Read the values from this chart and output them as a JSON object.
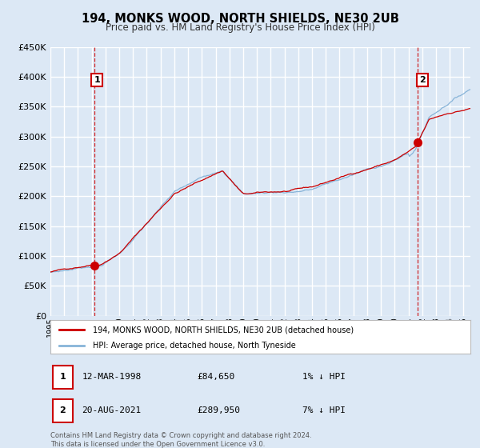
{
  "title": "194, MONKS WOOD, NORTH SHIELDS, NE30 2UB",
  "subtitle": "Price paid vs. HM Land Registry's House Price Index (HPI)",
  "bg_color": "#dce8f5",
  "plot_bg_color": "#dce8f5",
  "grid_color": "#ffffff",
  "hpi_color": "#88b4d8",
  "price_color": "#cc0000",
  "ylim": [
    0,
    450000
  ],
  "yticks": [
    0,
    50000,
    100000,
    150000,
    200000,
    250000,
    300000,
    350000,
    400000,
    450000
  ],
  "sale1_date": 1998.19,
  "sale1_price": 84650,
  "sale2_date": 2021.64,
  "sale2_price": 289950,
  "legend_line1": "194, MONKS WOOD, NORTH SHIELDS, NE30 2UB (detached house)",
  "legend_line2": "HPI: Average price, detached house, North Tyneside",
  "table_row1": [
    "1",
    "12-MAR-1998",
    "£84,650",
    "1% ↓ HPI"
  ],
  "table_row2": [
    "2",
    "20-AUG-2021",
    "£289,950",
    "7% ↓ HPI"
  ],
  "footer1": "Contains HM Land Registry data © Crown copyright and database right 2024.",
  "footer2": "This data is licensed under the Open Government Licence v3.0.",
  "xmin": 1995.0,
  "xmax": 2025.5
}
